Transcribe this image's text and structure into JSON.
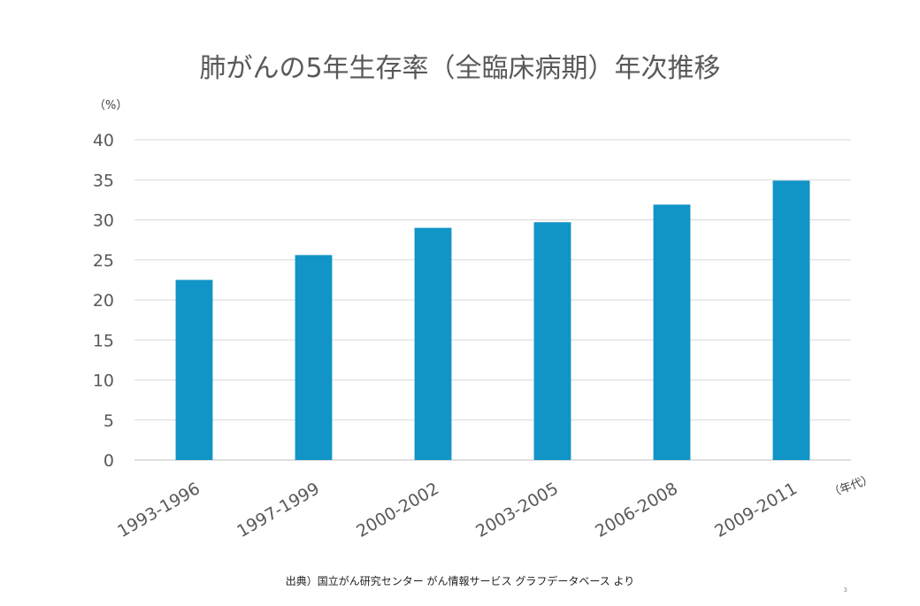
{
  "chart_data": {
    "type": "bar",
    "title": "肺がんの5年生存率（全臨床病期）年次推移",
    "ylabel": "（%）",
    "xlabel": "（年代）",
    "categories": [
      "1993-1996",
      "1997-1999",
      "2000-2002",
      "2003-2005",
      "2006-2008",
      "2009-2011"
    ],
    "values": [
      22.5,
      25.6,
      29.0,
      29.7,
      31.9,
      34.9
    ],
    "ylim": [
      0,
      40
    ],
    "yticks": [
      "0",
      "5",
      "10",
      "15",
      "20",
      "25",
      "30",
      "35",
      "40"
    ],
    "grid": true,
    "bar_color": "#1194C6"
  },
  "footer": {
    "source": "出典）国立がん研究センター がん情報サービス グラフデータベース より",
    "page_number": "3"
  }
}
